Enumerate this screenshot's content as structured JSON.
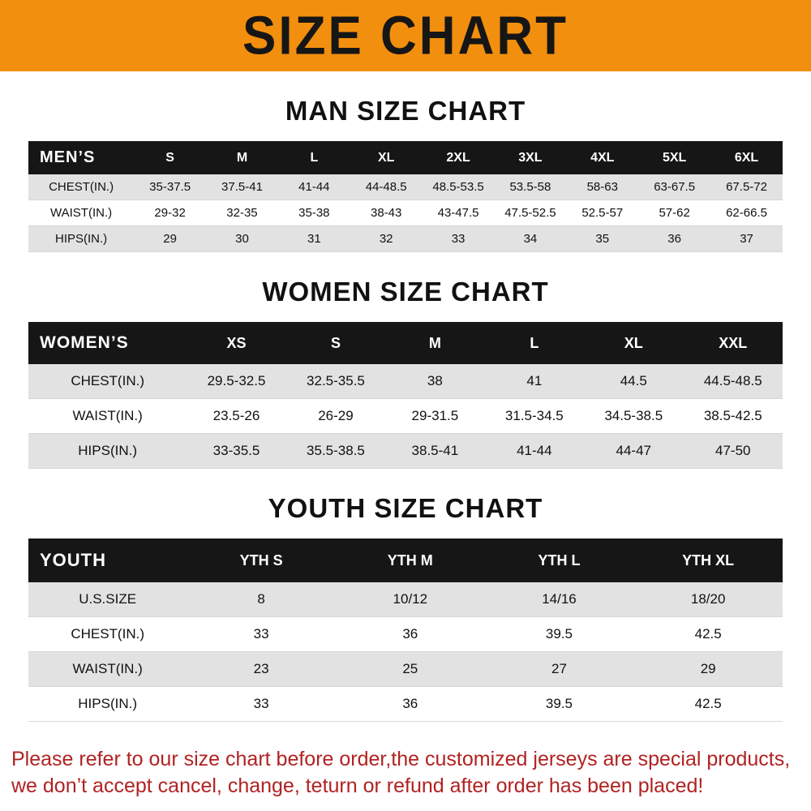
{
  "banner": {
    "title": "SIZE CHART"
  },
  "colors": {
    "banner_bg": "#F28F0E",
    "table_header_bg": "#161616",
    "row_alt_bg": "#E2E2E2",
    "note_red": "#B22222"
  },
  "chart_data": [
    {
      "type": "table",
      "title": "MAN SIZE CHART",
      "row_header": "MEN’S",
      "columns": [
        "S",
        "M",
        "L",
        "XL",
        "2XL",
        "3XL",
        "4XL",
        "5XL",
        "6XL"
      ],
      "rows": [
        {
          "label": "CHEST(IN.)",
          "values": [
            "35-37.5",
            "37.5-41",
            "41-44",
            "44-48.5",
            "48.5-53.5",
            "53.5-58",
            "58-63",
            "63-67.5",
            "67.5-72"
          ]
        },
        {
          "label": "WAIST(IN.)",
          "values": [
            "29-32",
            "32-35",
            "35-38",
            "38-43",
            "43-47.5",
            "47.5-52.5",
            "52.5-57",
            "57-62",
            "62-66.5"
          ]
        },
        {
          "label": "HIPS(IN.)",
          "values": [
            "29",
            "30",
            "31",
            "32",
            "33",
            "34",
            "35",
            "36",
            "37"
          ]
        }
      ]
    },
    {
      "type": "table",
      "title": "WOMEN SIZE CHART",
      "row_header": "WOMEN’S",
      "columns": [
        "XS",
        "S",
        "M",
        "L",
        "XL",
        "XXL"
      ],
      "rows": [
        {
          "label": "CHEST(IN.)",
          "values": [
            "29.5-32.5",
            "32.5-35.5",
            "38",
            "41",
            "44.5",
            "44.5-48.5"
          ]
        },
        {
          "label": "WAIST(IN.)",
          "values": [
            "23.5-26",
            "26-29",
            "29-31.5",
            "31.5-34.5",
            "34.5-38.5",
            "38.5-42.5"
          ]
        },
        {
          "label": "HIPS(IN.)",
          "values": [
            "33-35.5",
            "35.5-38.5",
            "38.5-41",
            "41-44",
            "44-47",
            "47-50"
          ]
        }
      ]
    },
    {
      "type": "table",
      "title": "YOUTH SIZE CHART",
      "row_header": "YOUTH",
      "columns": [
        "YTH S",
        "YTH M",
        "YTH L",
        "YTH XL"
      ],
      "rows": [
        {
          "label": "U.S.SIZE",
          "values": [
            "8",
            "10/12",
            "14/16",
            "18/20"
          ]
        },
        {
          "label": "CHEST(IN.)",
          "values": [
            "33",
            "36",
            "39.5",
            "42.5"
          ]
        },
        {
          "label": "WAIST(IN.)",
          "values": [
            "23",
            "25",
            "27",
            "29"
          ]
        },
        {
          "label": "HIPS(IN.)",
          "values": [
            "33",
            "36",
            "39.5",
            "42.5"
          ]
        }
      ]
    }
  ],
  "footer": {
    "lines": [
      "Please refer to our size chart before order,the customized jerseys are special products,",
      "we don’t accept cancel, change, teturn or refund after order has been placed!"
    ]
  }
}
